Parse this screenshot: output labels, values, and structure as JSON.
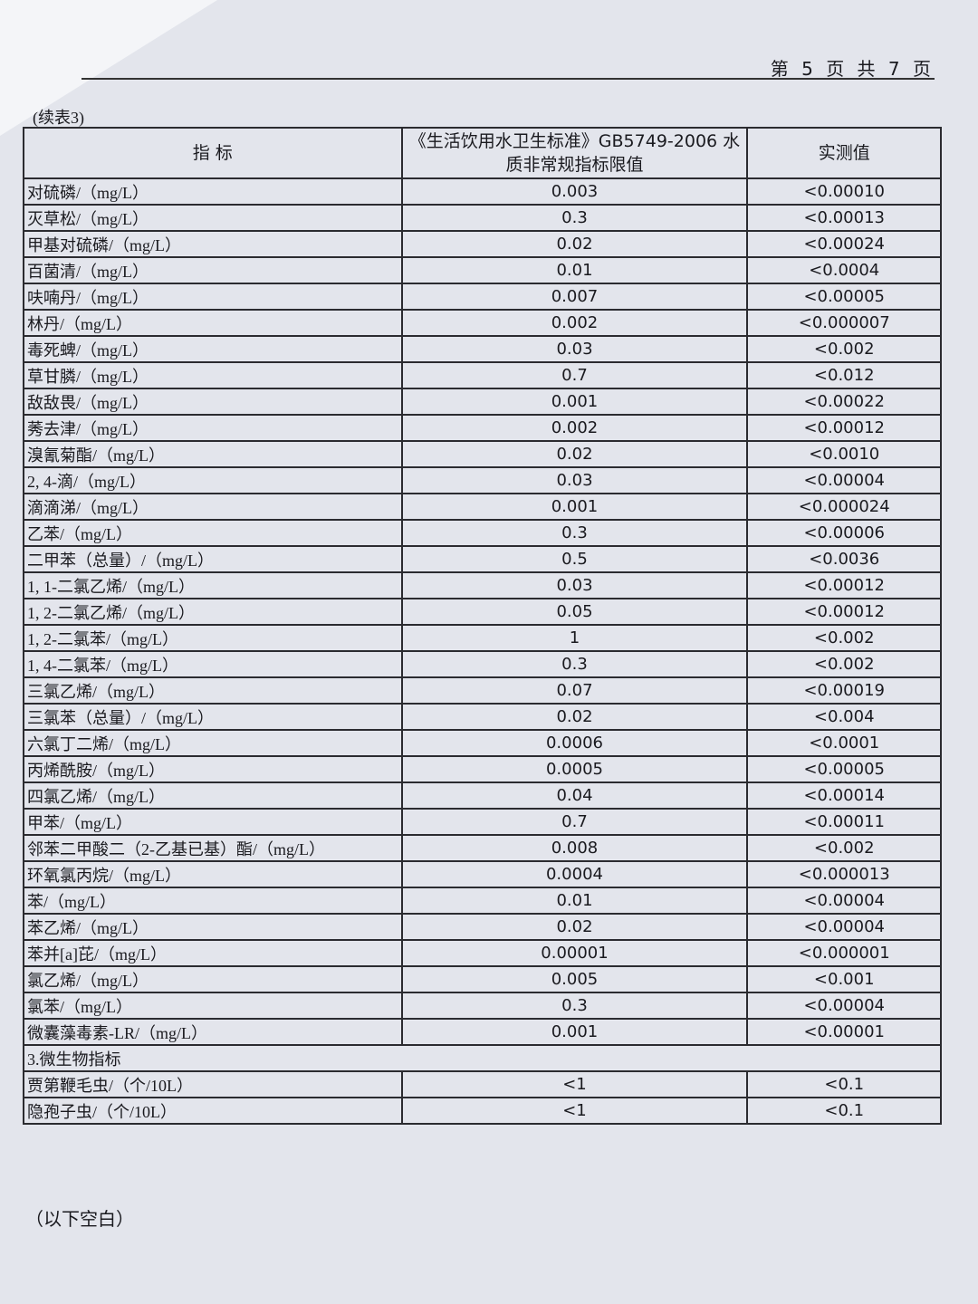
{
  "page_number": "第 5 页  共 7 页",
  "caption": "(续表3)",
  "headers": {
    "indicator": "指    标",
    "limit": "《生活饮用水卫生标准》GB5749-2006 水质非常规指标限值",
    "measured": "实测值"
  },
  "rows": [
    {
      "name": "对硫磷/（mg/L）",
      "limit": "0.003",
      "measured": "<0.00010"
    },
    {
      "name": "灭草松/（mg/L）",
      "limit": "0.3",
      "measured": "<0.00013"
    },
    {
      "name": "甲基对硫磷/（mg/L）",
      "limit": "0.02",
      "measured": "<0.00024"
    },
    {
      "name": "百菌清/（mg/L）",
      "limit": "0.01",
      "measured": "<0.0004"
    },
    {
      "name": "呋喃丹/（mg/L）",
      "limit": "0.007",
      "measured": "<0.00005"
    },
    {
      "name": "林丹/（mg/L）",
      "limit": "0.002",
      "measured": "<0.000007"
    },
    {
      "name": "毒死蜱/（mg/L）",
      "limit": "0.03",
      "measured": "<0.002"
    },
    {
      "name": "草甘膦/（mg/L）",
      "limit": "0.7",
      "measured": "<0.012"
    },
    {
      "name": "敌敌畏/（mg/L）",
      "limit": "0.001",
      "measured": "<0.00022"
    },
    {
      "name": "莠去津/（mg/L）",
      "limit": "0.002",
      "measured": "<0.00012"
    },
    {
      "name": "溴氰菊酯/（mg/L）",
      "limit": "0.02",
      "measured": "<0.0010"
    },
    {
      "name": "2, 4-滴/（mg/L）",
      "limit": "0.03",
      "measured": "<0.00004"
    },
    {
      "name": "滴滴涕/（mg/L）",
      "limit": "0.001",
      "measured": "<0.000024"
    },
    {
      "name": "乙苯/（mg/L）",
      "limit": "0.3",
      "measured": "<0.00006"
    },
    {
      "name": "二甲苯（总量）/（mg/L）",
      "limit": "0.5",
      "measured": "<0.0036"
    },
    {
      "name": "1, 1-二氯乙烯/（mg/L）",
      "limit": "0.03",
      "measured": "<0.00012"
    },
    {
      "name": "1, 2-二氯乙烯/（mg/L）",
      "limit": "0.05",
      "measured": "<0.00012"
    },
    {
      "name": "1, 2-二氯苯/（mg/L）",
      "limit": "1",
      "measured": "<0.002"
    },
    {
      "name": "1, 4-二氯苯/（mg/L）",
      "limit": "0.3",
      "measured": "<0.002"
    },
    {
      "name": "三氯乙烯/（mg/L）",
      "limit": "0.07",
      "measured": "<0.00019"
    },
    {
      "name": "三氯苯（总量）/（mg/L）",
      "limit": "0.02",
      "measured": "<0.004"
    },
    {
      "name": "六氯丁二烯/（mg/L）",
      "limit": "0.0006",
      "measured": "<0.0001"
    },
    {
      "name": "丙烯酰胺/（mg/L）",
      "limit": "0.0005",
      "measured": "<0.00005"
    },
    {
      "name": "四氯乙烯/（mg/L）",
      "limit": "0.04",
      "measured": "<0.00014"
    },
    {
      "name": "甲苯/（mg/L）",
      "limit": "0.7",
      "measured": "<0.00011"
    },
    {
      "name": "邻苯二甲酸二（2-乙基已基）酯/（mg/L）",
      "limit": "0.008",
      "measured": "<0.002"
    },
    {
      "name": "环氧氯丙烷/（mg/L）",
      "limit": "0.0004",
      "measured": "<0.000013"
    },
    {
      "name": "苯/（mg/L）",
      "limit": "0.01",
      "measured": "<0.00004"
    },
    {
      "name": "苯乙烯/（mg/L）",
      "limit": "0.02",
      "measured": "<0.00004"
    },
    {
      "name": "苯并[a]芘/（mg/L）",
      "limit": "0.00001",
      "measured": "<0.000001"
    },
    {
      "name": "氯乙烯/（mg/L）",
      "limit": "0.005",
      "measured": "<0.001"
    },
    {
      "name": "氯苯/（mg/L）",
      "limit": "0.3",
      "measured": "<0.00004"
    },
    {
      "name": "微囊藻毒素-LR/（mg/L）",
      "limit": "0.001",
      "measured": "<0.00001"
    }
  ],
  "section": "3.微生物指标",
  "micro_rows": [
    {
      "name": "贾第鞭毛虫/（个/10L）",
      "limit": "<1",
      "measured": "<0.1"
    },
    {
      "name": "隐孢子虫/（个/10L）",
      "limit": "<1",
      "measured": "<0.1"
    }
  ],
  "footer": "（以下空白）"
}
